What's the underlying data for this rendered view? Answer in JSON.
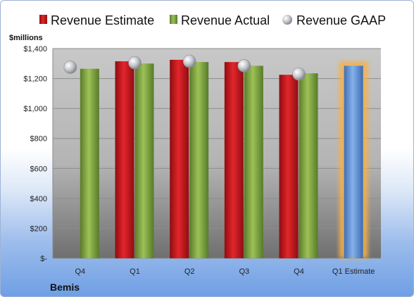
{
  "chart_data": {
    "type": "bar",
    "categories": [
      "Q4",
      "Q1",
      "Q2",
      "Q3",
      "Q4",
      "Q1 Estimate"
    ],
    "series": [
      {
        "name": "Revenue Estimate",
        "values": [
          null,
          1315,
          1325,
          1310,
          1225,
          null
        ],
        "color": "#c8181d"
      },
      {
        "name": "Revenue Actual",
        "values": [
          1265,
          1300,
          1310,
          1285,
          1235,
          null
        ],
        "color": "#7fa43f"
      },
      {
        "name": "Revenue GAAP",
        "values": [
          1275,
          1305,
          1315,
          1285,
          1230,
          null
        ],
        "color": "#b9bcc2",
        "marker": "sphere"
      },
      {
        "name": "",
        "values": [
          null,
          null,
          null,
          null,
          null,
          1285
        ],
        "color": "#5b8fd6",
        "highlight": "#f6b04a"
      }
    ],
    "ylabel": "$millions",
    "ylim": [
      0,
      1400
    ],
    "yticks": [
      0,
      200,
      400,
      600,
      800,
      1000,
      1200,
      1400
    ],
    "ytick_labels": [
      "$-",
      "$200",
      "$400",
      "$600",
      "$800",
      "$1,000",
      "$1,200",
      "$1,400"
    ],
    "grid": true,
    "legend_position": "top",
    "company": "Bemis"
  }
}
